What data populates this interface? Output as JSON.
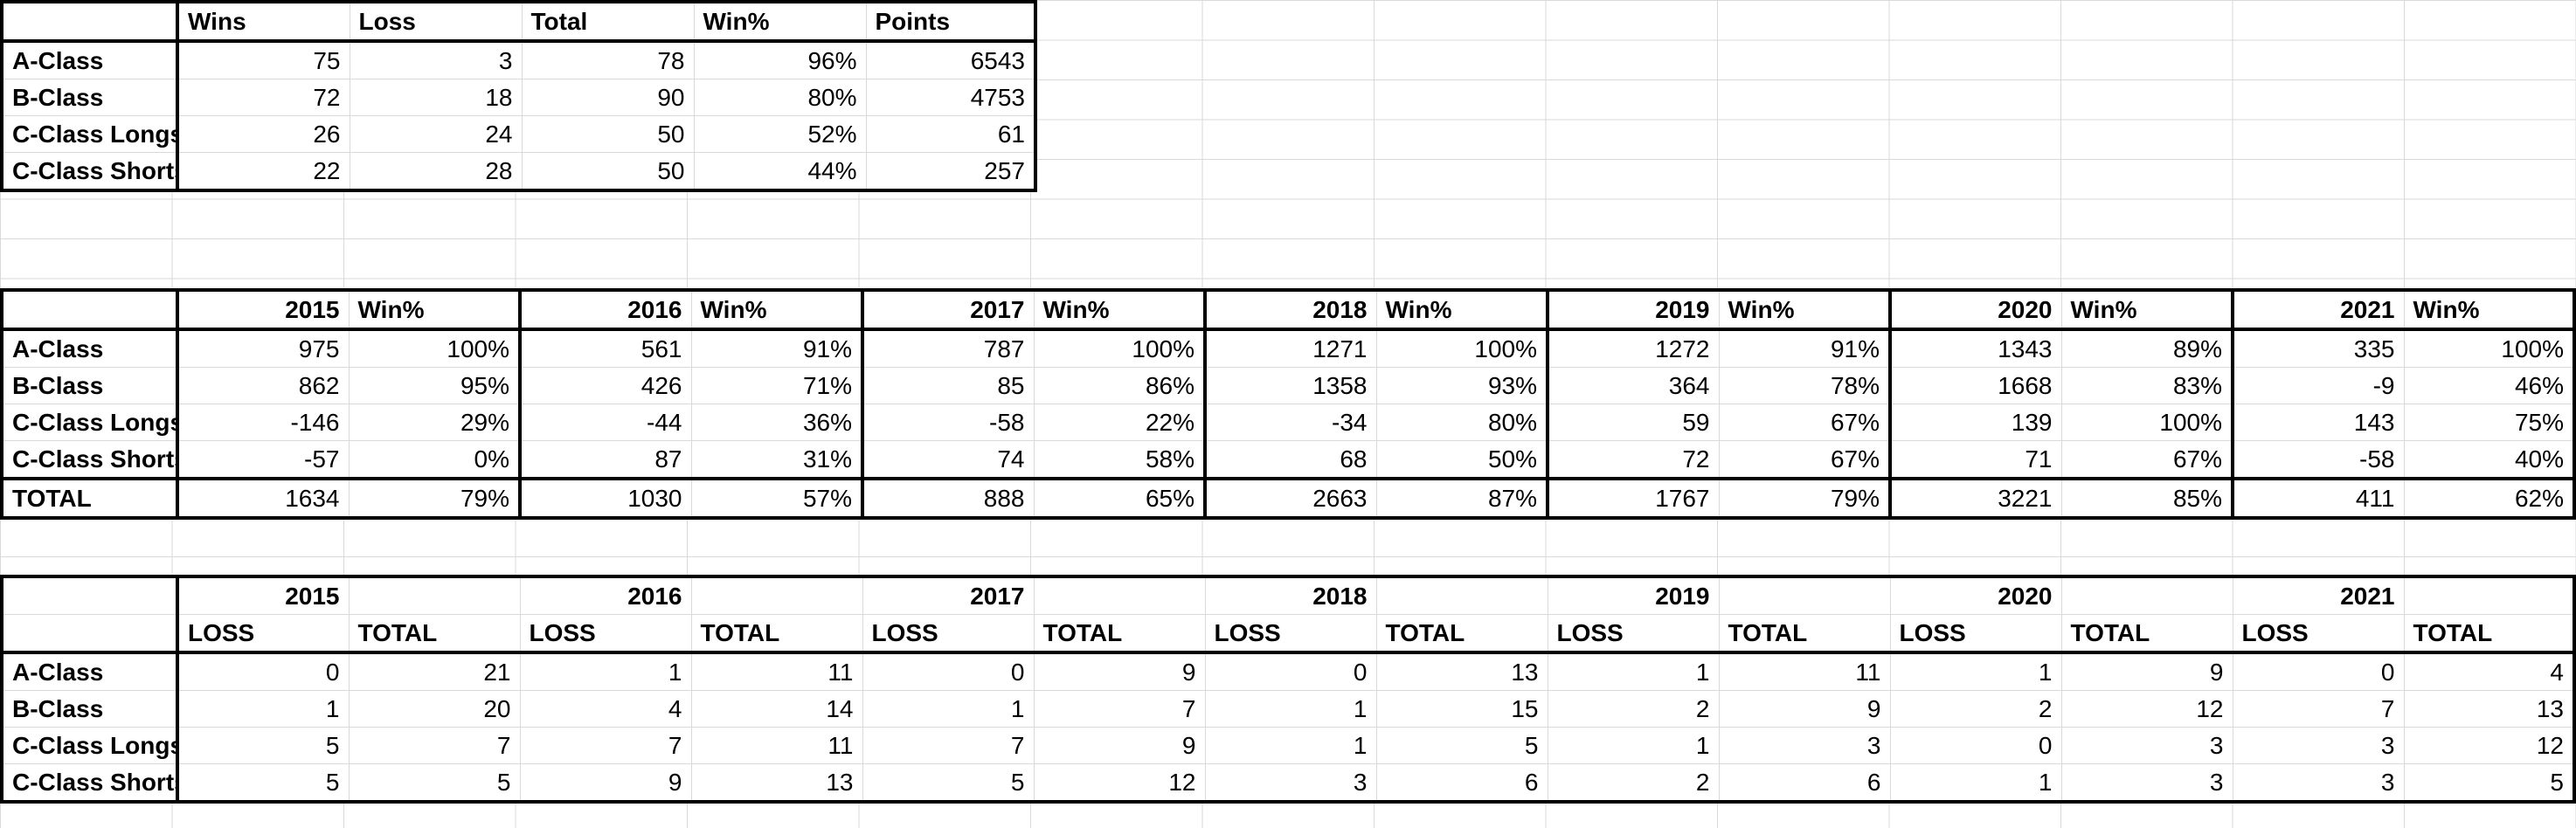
{
  "summary": {
    "headers": [
      "",
      "Wins",
      "Loss",
      "Total",
      "Win%",
      "Points"
    ],
    "rows": [
      {
        "label": "A-Class",
        "cells": [
          "75",
          "3",
          "78",
          "96%",
          "6543"
        ]
      },
      {
        "label": "B-Class",
        "cells": [
          "72",
          "18",
          "90",
          "80%",
          "4753"
        ]
      },
      {
        "label": "C-Class Longs",
        "cells": [
          "26",
          "24",
          "50",
          "52%",
          "61"
        ]
      },
      {
        "label": "C-Class Shorts",
        "cells": [
          "22",
          "28",
          "50",
          "44%",
          "257"
        ]
      }
    ]
  },
  "yearly": {
    "years": [
      "2015",
      "2016",
      "2017",
      "2018",
      "2019",
      "2020",
      "2021"
    ],
    "winpct_label": "Win%",
    "rows": [
      {
        "label": "A-Class",
        "cells": [
          "975",
          "100%",
          "561",
          "91%",
          "787",
          "100%",
          "1271",
          "100%",
          "1272",
          "91%",
          "1343",
          "89%",
          "335",
          "100%"
        ]
      },
      {
        "label": "B-Class",
        "cells": [
          "862",
          "95%",
          "426",
          "71%",
          "85",
          "86%",
          "1358",
          "93%",
          "364",
          "78%",
          "1668",
          "83%",
          "-9",
          "46%"
        ]
      },
      {
        "label": "C-Class Longs",
        "cells": [
          "-146",
          "29%",
          "-44",
          "36%",
          "-58",
          "22%",
          "-34",
          "80%",
          "59",
          "67%",
          "139",
          "100%",
          "143",
          "75%"
        ]
      },
      {
        "label": "C-Class Shorts",
        "cells": [
          "-57",
          "0%",
          "87",
          "31%",
          "74",
          "58%",
          "68",
          "50%",
          "72",
          "67%",
          "71",
          "67%",
          "-58",
          "40%"
        ]
      },
      {
        "label": "TOTAL",
        "cells": [
          "1634",
          "79%",
          "1030",
          "57%",
          "888",
          "65%",
          "2663",
          "87%",
          "1767",
          "79%",
          "3221",
          "85%",
          "411",
          "62%"
        ]
      }
    ]
  },
  "losses": {
    "years": [
      "2015",
      "2016",
      "2017",
      "2018",
      "2019",
      "2020",
      "2021"
    ],
    "sub_headers": [
      "LOSS",
      "TOTAL"
    ],
    "rows": [
      {
        "label": "A-Class",
        "cells": [
          "0",
          "21",
          "1",
          "11",
          "0",
          "9",
          "0",
          "13",
          "1",
          "11",
          "1",
          "9",
          "0",
          "4"
        ]
      },
      {
        "label": "B-Class",
        "cells": [
          "1",
          "20",
          "4",
          "14",
          "1",
          "7",
          "1",
          "15",
          "2",
          "9",
          "2",
          "12",
          "7",
          "13"
        ]
      },
      {
        "label": "C-Class Longs",
        "cells": [
          "5",
          "7",
          "7",
          "11",
          "7",
          "9",
          "1",
          "5",
          "1",
          "3",
          "0",
          "3",
          "3",
          "12"
        ]
      },
      {
        "label": "C-Class Shorts",
        "cells": [
          "5",
          "5",
          "9",
          "13",
          "5",
          "12",
          "3",
          "6",
          "2",
          "6",
          "1",
          "3",
          "3",
          "5"
        ]
      }
    ]
  },
  "colors": {
    "negative": "#e8261d",
    "gridline": "#d9d9d9",
    "border": "#000000"
  }
}
